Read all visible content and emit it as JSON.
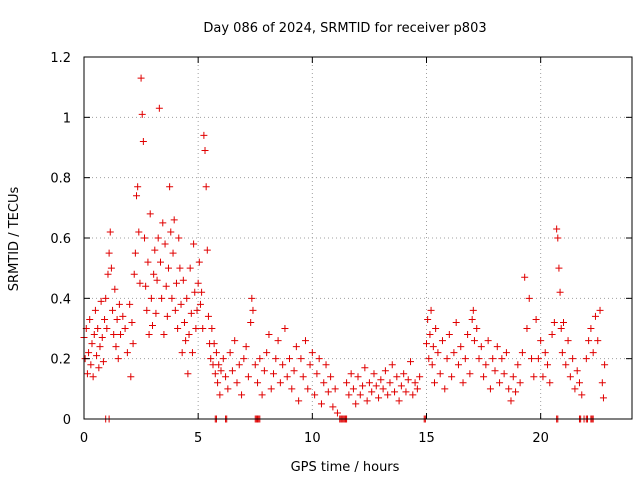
{
  "chart_data": {
    "type": "scatter",
    "title": "Day 086 of 2024, SRMTID for receiver p803",
    "xlabel": "GPS time / hours",
    "ylabel": "SRMTID / TECUs",
    "xlim": [
      0,
      24
    ],
    "ylim": [
      0,
      1.2
    ],
    "x_ticks": [
      "0",
      "5",
      "10",
      "15",
      "20"
    ],
    "x_tick_values": [
      0,
      5,
      10,
      15,
      20
    ],
    "y_ticks": [
      "0",
      "0.2",
      "0.4",
      "0.6",
      "0.8",
      "1",
      "1.2"
    ],
    "y_tick_values": [
      0,
      0.2,
      0.4,
      0.6,
      0.8,
      1.0,
      1.2
    ],
    "grid": true,
    "marker": "+",
    "color": "#e00000",
    "series": [
      {
        "name": "SRMTID",
        "points": [
          [
            0.0,
            0.27
          ],
          [
            0.05,
            0.2
          ],
          [
            0.1,
            0.3
          ],
          [
            0.15,
            0.15
          ],
          [
            0.2,
            0.22
          ],
          [
            0.25,
            0.33
          ],
          [
            0.3,
            0.18
          ],
          [
            0.35,
            0.25
          ],
          [
            0.4,
            0.14
          ],
          [
            0.45,
            0.28
          ],
          [
            0.5,
            0.36
          ],
          [
            0.55,
            0.21
          ],
          [
            0.6,
            0.3
          ],
          [
            0.65,
            0.17
          ],
          [
            0.7,
            0.24
          ],
          [
            0.75,
            0.39
          ],
          [
            0.8,
            0.27
          ],
          [
            0.85,
            0.19
          ],
          [
            0.9,
            0.33
          ],
          [
            0.95,
            0.4
          ],
          [
            1.0,
            0.3
          ],
          [
            1.05,
            0.48
          ],
          [
            1.1,
            0.55
          ],
          [
            1.15,
            0.62
          ],
          [
            1.2,
            0.5
          ],
          [
            1.25,
            0.36
          ],
          [
            1.3,
            0.28
          ],
          [
            1.35,
            0.43
          ],
          [
            1.4,
            0.24
          ],
          [
            1.45,
            0.33
          ],
          [
            1.5,
            0.2
          ],
          [
            1.55,
            0.38
          ],
          [
            1.6,
            0.28
          ],
          [
            1.7,
            0.34
          ],
          [
            1.8,
            0.3
          ],
          [
            1.9,
            0.22
          ],
          [
            2.0,
            0.38
          ],
          [
            2.05,
            0.14
          ],
          [
            2.1,
            0.32
          ],
          [
            2.15,
            0.25
          ],
          [
            2.2,
            0.48
          ],
          [
            2.25,
            0.55
          ],
          [
            2.3,
            0.74
          ],
          [
            2.35,
            0.77
          ],
          [
            2.4,
            0.62
          ],
          [
            2.45,
            0.45
          ],
          [
            2.5,
            1.13
          ],
          [
            2.55,
            1.01
          ],
          [
            2.6,
            0.92
          ],
          [
            2.65,
            0.6
          ],
          [
            2.7,
            0.44
          ],
          [
            2.75,
            0.36
          ],
          [
            2.8,
            0.52
          ],
          [
            2.85,
            0.28
          ],
          [
            2.9,
            0.68
          ],
          [
            2.95,
            0.4
          ],
          [
            3.0,
            0.31
          ],
          [
            3.05,
            0.48
          ],
          [
            3.1,
            0.56
          ],
          [
            3.15,
            0.35
          ],
          [
            3.2,
            0.46
          ],
          [
            3.25,
            0.6
          ],
          [
            3.3,
            1.03
          ],
          [
            3.35,
            0.52
          ],
          [
            3.4,
            0.4
          ],
          [
            3.45,
            0.65
          ],
          [
            3.5,
            0.28
          ],
          [
            3.55,
            0.58
          ],
          [
            3.6,
            0.44
          ],
          [
            3.65,
            0.34
          ],
          [
            3.7,
            0.5
          ],
          [
            3.75,
            0.77
          ],
          [
            3.8,
            0.62
          ],
          [
            3.85,
            0.4
          ],
          [
            3.9,
            0.55
          ],
          [
            3.95,
            0.66
          ],
          [
            4.0,
            0.36
          ],
          [
            4.05,
            0.45
          ],
          [
            4.1,
            0.3
          ],
          [
            4.15,
            0.6
          ],
          [
            4.2,
            0.5
          ],
          [
            4.25,
            0.38
          ],
          [
            4.3,
            0.22
          ],
          [
            4.35,
            0.46
          ],
          [
            4.4,
            0.32
          ],
          [
            4.45,
            0.26
          ],
          [
            4.5,
            0.4
          ],
          [
            4.55,
            0.15
          ],
          [
            4.6,
            0.28
          ],
          [
            4.65,
            0.5
          ],
          [
            4.7,
            0.35
          ],
          [
            4.75,
            0.22
          ],
          [
            4.8,
            0.58
          ],
          [
            4.85,
            0.42
          ],
          [
            4.9,
            0.3
          ],
          [
            4.95,
            0.36
          ],
          [
            5.0,
            0.45
          ],
          [
            5.05,
            0.52
          ],
          [
            5.1,
            0.38
          ],
          [
            5.15,
            0.42
          ],
          [
            5.2,
            0.3
          ],
          [
            5.25,
            0.94
          ],
          [
            5.3,
            0.89
          ],
          [
            5.35,
            0.77
          ],
          [
            5.4,
            0.56
          ],
          [
            5.45,
            0.34
          ],
          [
            5.5,
            0.25
          ],
          [
            5.55,
            0.2
          ],
          [
            5.6,
            0.3
          ],
          [
            5.65,
            0.18
          ],
          [
            5.7,
            0.25
          ],
          [
            5.75,
            0.15
          ],
          [
            5.8,
            0.22
          ],
          [
            5.85,
            0.12
          ],
          [
            5.9,
            0.18
          ],
          [
            5.95,
            0.08
          ],
          [
            6.0,
            0.16
          ],
          [
            6.1,
            0.2
          ],
          [
            6.2,
            0.14
          ],
          [
            6.3,
            0.1
          ],
          [
            6.4,
            0.22
          ],
          [
            6.5,
            0.16
          ],
          [
            6.6,
            0.26
          ],
          [
            6.7,
            0.12
          ],
          [
            6.8,
            0.18
          ],
          [
            6.9,
            0.08
          ],
          [
            7.0,
            0.2
          ],
          [
            7.1,
            0.24
          ],
          [
            7.2,
            0.14
          ],
          [
            7.3,
            0.32
          ],
          [
            7.35,
            0.4
          ],
          [
            7.4,
            0.36
          ],
          [
            7.5,
            0.18
          ],
          [
            7.6,
            0.12
          ],
          [
            7.7,
            0.2
          ],
          [
            7.8,
            0.08
          ],
          [
            7.9,
            0.16
          ],
          [
            8.0,
            0.22
          ],
          [
            8.1,
            0.28
          ],
          [
            8.2,
            0.1
          ],
          [
            8.3,
            0.15
          ],
          [
            8.4,
            0.2
          ],
          [
            8.5,
            0.26
          ],
          [
            8.6,
            0.12
          ],
          [
            8.7,
            0.18
          ],
          [
            8.8,
            0.3
          ],
          [
            8.9,
            0.14
          ],
          [
            9.0,
            0.2
          ],
          [
            9.1,
            0.1
          ],
          [
            9.2,
            0.16
          ],
          [
            9.3,
            0.24
          ],
          [
            9.4,
            0.06
          ],
          [
            9.5,
            0.2
          ],
          [
            9.6,
            0.14
          ],
          [
            9.7,
            0.26
          ],
          [
            9.8,
            0.1
          ],
          [
            9.9,
            0.18
          ],
          [
            10.0,
            0.22
          ],
          [
            10.1,
            0.08
          ],
          [
            10.2,
            0.15
          ],
          [
            10.3,
            0.2
          ],
          [
            10.4,
            0.05
          ],
          [
            10.5,
            0.12
          ],
          [
            10.6,
            0.18
          ],
          [
            10.7,
            0.09
          ],
          [
            10.8,
            0.14
          ],
          [
            10.9,
            0.04
          ],
          [
            11.0,
            0.1
          ],
          [
            11.1,
            0.02
          ],
          [
            11.5,
            0.12
          ],
          [
            11.6,
            0.08
          ],
          [
            11.7,
            0.15
          ],
          [
            11.8,
            0.1
          ],
          [
            11.9,
            0.05
          ],
          [
            12.0,
            0.14
          ],
          [
            12.1,
            0.08
          ],
          [
            12.2,
            0.11
          ],
          [
            12.3,
            0.17
          ],
          [
            12.4,
            0.06
          ],
          [
            12.5,
            0.12
          ],
          [
            12.6,
            0.09
          ],
          [
            12.7,
            0.15
          ],
          [
            12.8,
            0.11
          ],
          [
            12.9,
            0.07
          ],
          [
            13.0,
            0.13
          ],
          [
            13.1,
            0.1
          ],
          [
            13.2,
            0.16
          ],
          [
            13.3,
            0.08
          ],
          [
            13.4,
            0.12
          ],
          [
            13.5,
            0.18
          ],
          [
            13.6,
            0.09
          ],
          [
            13.7,
            0.14
          ],
          [
            13.8,
            0.06
          ],
          [
            13.9,
            0.11
          ],
          [
            14.0,
            0.15
          ],
          [
            14.1,
            0.09
          ],
          [
            14.2,
            0.13
          ],
          [
            14.3,
            0.19
          ],
          [
            14.4,
            0.08
          ],
          [
            14.5,
            0.12
          ],
          [
            14.6,
            0.1
          ],
          [
            14.7,
            0.14
          ],
          [
            15.0,
            0.25
          ],
          [
            15.05,
            0.33
          ],
          [
            15.1,
            0.2
          ],
          [
            15.15,
            0.28
          ],
          [
            15.2,
            0.36
          ],
          [
            15.25,
            0.18
          ],
          [
            15.3,
            0.24
          ],
          [
            15.35,
            0.12
          ],
          [
            15.4,
            0.3
          ],
          [
            15.5,
            0.22
          ],
          [
            15.6,
            0.15
          ],
          [
            15.7,
            0.26
          ],
          [
            15.8,
            0.1
          ],
          [
            15.9,
            0.2
          ],
          [
            16.0,
            0.28
          ],
          [
            16.1,
            0.14
          ],
          [
            16.2,
            0.22
          ],
          [
            16.3,
            0.32
          ],
          [
            16.4,
            0.18
          ],
          [
            16.5,
            0.24
          ],
          [
            16.6,
            0.12
          ],
          [
            16.7,
            0.2
          ],
          [
            16.8,
            0.28
          ],
          [
            16.9,
            0.15
          ],
          [
            17.0,
            0.33
          ],
          [
            17.05,
            0.36
          ],
          [
            17.1,
            0.26
          ],
          [
            17.2,
            0.3
          ],
          [
            17.3,
            0.2
          ],
          [
            17.4,
            0.24
          ],
          [
            17.5,
            0.14
          ],
          [
            17.6,
            0.18
          ],
          [
            17.7,
            0.26
          ],
          [
            17.8,
            0.1
          ],
          [
            17.9,
            0.2
          ],
          [
            18.0,
            0.16
          ],
          [
            18.1,
            0.24
          ],
          [
            18.2,
            0.12
          ],
          [
            18.3,
            0.2
          ],
          [
            18.4,
            0.15
          ],
          [
            18.5,
            0.22
          ],
          [
            18.6,
            0.1
          ],
          [
            18.7,
            0.06
          ],
          [
            18.8,
            0.14
          ],
          [
            18.9,
            0.09
          ],
          [
            19.0,
            0.18
          ],
          [
            19.1,
            0.12
          ],
          [
            19.2,
            0.22
          ],
          [
            19.3,
            0.47
          ],
          [
            19.4,
            0.3
          ],
          [
            19.5,
            0.4
          ],
          [
            19.6,
            0.2
          ],
          [
            19.7,
            0.14
          ],
          [
            19.8,
            0.33
          ],
          [
            19.9,
            0.2
          ],
          [
            20.0,
            0.26
          ],
          [
            20.1,
            0.14
          ],
          [
            20.2,
            0.22
          ],
          [
            20.3,
            0.18
          ],
          [
            20.4,
            0.12
          ],
          [
            20.5,
            0.28
          ],
          [
            20.6,
            0.32
          ],
          [
            20.7,
            0.63
          ],
          [
            20.75,
            0.6
          ],
          [
            20.8,
            0.5
          ],
          [
            20.85,
            0.42
          ],
          [
            20.9,
            0.3
          ],
          [
            20.95,
            0.22
          ],
          [
            21.0,
            0.32
          ],
          [
            21.1,
            0.18
          ],
          [
            21.2,
            0.26
          ],
          [
            21.3,
            0.14
          ],
          [
            21.4,
            0.2
          ],
          [
            21.5,
            0.1
          ],
          [
            21.6,
            0.16
          ],
          [
            21.7,
            0.12
          ],
          [
            21.8,
            0.08
          ],
          [
            22.0,
            0.2
          ],
          [
            22.1,
            0.26
          ],
          [
            22.2,
            0.3
          ],
          [
            22.3,
            0.22
          ],
          [
            22.4,
            0.34
          ],
          [
            22.5,
            0.26
          ],
          [
            22.6,
            0.36
          ],
          [
            22.7,
            0.12
          ],
          [
            22.75,
            0.07
          ],
          [
            22.8,
            0.18
          ]
        ]
      },
      {
        "name": "zero-values",
        "points": [
          [
            0.95,
            0
          ],
          [
            1.1,
            0
          ],
          [
            5.75,
            0
          ],
          [
            5.8,
            0
          ],
          [
            6.2,
            0
          ],
          [
            6.25,
            0
          ],
          [
            7.5,
            0
          ],
          [
            7.55,
            0
          ],
          [
            7.6,
            0
          ],
          [
            7.65,
            0
          ],
          [
            7.7,
            0
          ],
          [
            11.2,
            0
          ],
          [
            11.25,
            0
          ],
          [
            11.3,
            0
          ],
          [
            11.35,
            0
          ],
          [
            11.4,
            0
          ],
          [
            11.45,
            0
          ],
          [
            11.5,
            0
          ],
          [
            14.9,
            0
          ],
          [
            14.95,
            0
          ],
          [
            20.7,
            0
          ],
          [
            20.75,
            0
          ],
          [
            21.7,
            0
          ],
          [
            21.75,
            0
          ],
          [
            21.9,
            0
          ],
          [
            22.0,
            0
          ],
          [
            22.05,
            0
          ],
          [
            22.2,
            0
          ],
          [
            22.25,
            0
          ],
          [
            22.3,
            0
          ]
        ]
      }
    ]
  }
}
